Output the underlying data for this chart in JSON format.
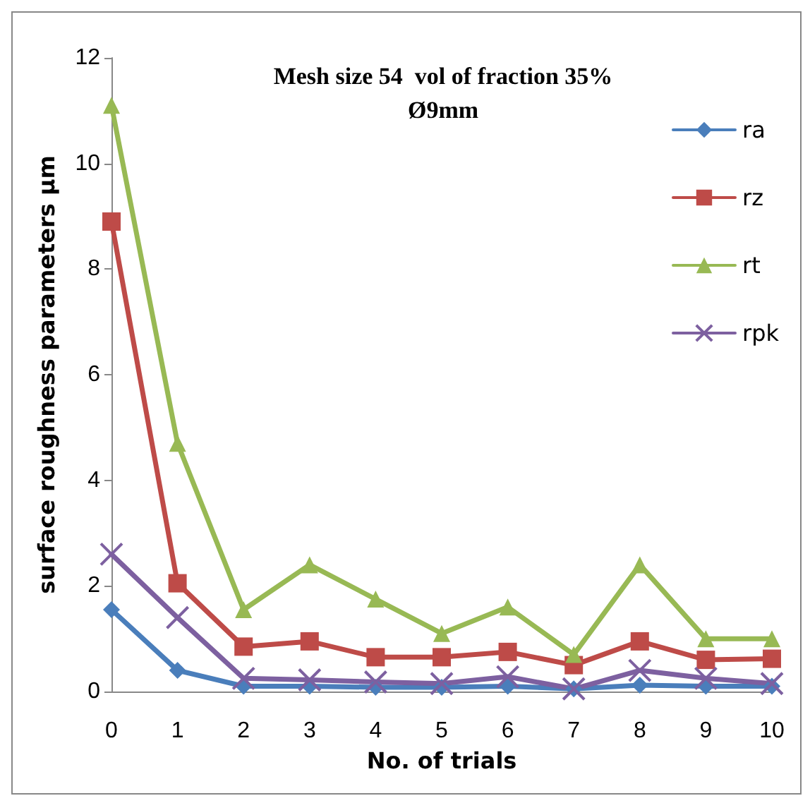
{
  "chart_data": {
    "type": "line",
    "title": "Mesh size 54  vol of fraction 35%\nØ9mm",
    "xlabel": "No. of trials",
    "ylabel": "surface roughness parameters µm",
    "categories": [
      "0",
      "1",
      "2",
      "3",
      "4",
      "5",
      "6",
      "7",
      "8",
      "9",
      "10"
    ],
    "ylim": [
      0,
      12
    ],
    "yticks": [
      0,
      2,
      4,
      6,
      8,
      10,
      12
    ],
    "grid": false,
    "legend": "right",
    "series": [
      {
        "name": "ra",
        "color": "#4a7ebb",
        "marker": "diamond",
        "values": [
          1.55,
          0.4,
          0.1,
          0.1,
          0.08,
          0.08,
          0.1,
          0.05,
          0.12,
          0.1,
          0.1
        ]
      },
      {
        "name": "rz",
        "color": "#be4b48",
        "marker": "square",
        "values": [
          8.9,
          2.05,
          0.85,
          0.95,
          0.65,
          0.65,
          0.75,
          0.5,
          0.95,
          0.6,
          0.62
        ]
      },
      {
        "name": "rt",
        "color": "#98b954",
        "marker": "triangle",
        "values": [
          11.1,
          4.7,
          1.55,
          2.4,
          1.75,
          1.1,
          1.6,
          0.7,
          2.4,
          1.0,
          1.0
        ]
      },
      {
        "name": "rpk",
        "color": "#7d60a0",
        "marker": "cross",
        "values": [
          2.6,
          1.4,
          0.25,
          0.22,
          0.18,
          0.15,
          0.28,
          0.05,
          0.4,
          0.25,
          0.15
        ]
      }
    ]
  }
}
